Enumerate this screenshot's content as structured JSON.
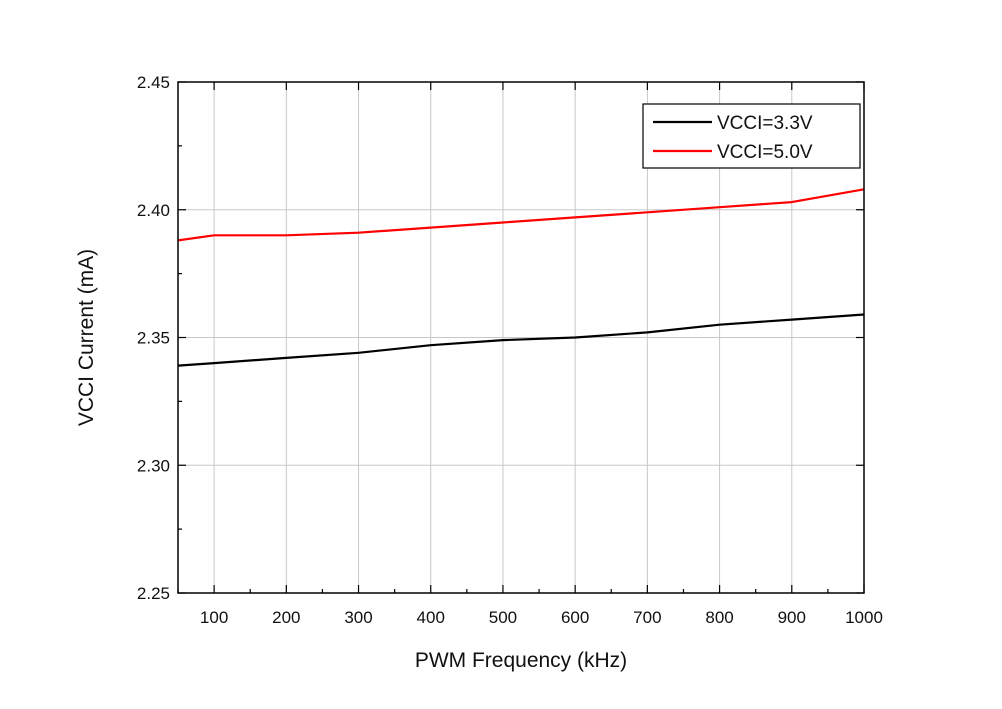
{
  "chart_data": {
    "type": "line",
    "title": "",
    "xlabel": "PWM Frequency (kHz)",
    "ylabel": "VCCI Current (mA)",
    "xlim": [
      50,
      1000
    ],
    "ylim": [
      2.25,
      2.45
    ],
    "x_ticks": [
      100,
      200,
      300,
      400,
      500,
      600,
      700,
      800,
      900,
      1000
    ],
    "y_ticks": [
      2.25,
      2.3,
      2.35,
      2.4,
      2.45
    ],
    "y_tick_labels": [
      "2.25",
      "2.30",
      "2.35",
      "2.40",
      "2.45"
    ],
    "grid": true,
    "legend_position": "top-right",
    "series": [
      {
        "name": "VCCI=3.3V",
        "color": "#000000",
        "x": [
          50,
          100,
          200,
          300,
          400,
          500,
          600,
          700,
          800,
          900,
          1000
        ],
        "y": [
          2.339,
          2.34,
          2.342,
          2.344,
          2.347,
          2.349,
          2.35,
          2.352,
          2.355,
          2.357,
          2.359
        ]
      },
      {
        "name": "VCCI=5.0V",
        "color": "#ff0000",
        "x": [
          50,
          100,
          200,
          300,
          400,
          500,
          600,
          700,
          800,
          900,
          1000
        ],
        "y": [
          2.388,
          2.39,
          2.39,
          2.391,
          2.393,
          2.395,
          2.397,
          2.399,
          2.401,
          2.403,
          2.408
        ]
      }
    ]
  }
}
